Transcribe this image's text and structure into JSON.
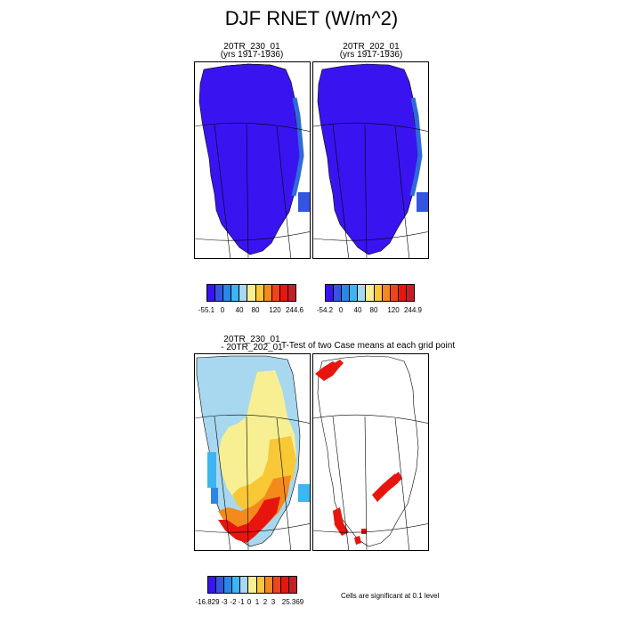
{
  "title": "DJF RNET (W/m^2)",
  "panels": [
    {
      "line1": "20TR_230_01",
      "line2": "(yrs 1917-1936)"
    },
    {
      "line1": "20TR_202_01",
      "line2": "(yrs 1917-1936)"
    },
    {
      "line1": "20TR_230_01",
      "line2": "- 20TR_202_01"
    },
    {
      "line1": "T-Test of two Case means at each grid point",
      "line2": ""
    }
  ],
  "colorbars": [
    {
      "labels": [
        "-55.1",
        "0",
        "40",
        "80",
        "120",
        "244.6"
      ]
    },
    {
      "labels": [
        "-54.2",
        "0",
        "40",
        "80",
        "120",
        "244.9"
      ]
    },
    {
      "labels": [
        "-16.829",
        "-3",
        "-2",
        "-1",
        "0",
        "1",
        "2",
        "3",
        "25.369"
      ]
    }
  ],
  "colors": {
    "mean_fill": "#3a14f0",
    "mean_edge": "#2f6bd8",
    "sig_fill": "#e8150f",
    "palette_mean": [
      "#3a14f0",
      "#3455e0",
      "#2b86e8",
      "#3cb5f0",
      "#a8d8ef",
      "#f8ef93",
      "#f9c837",
      "#f48a1c",
      "#f0451a",
      "#e8150f",
      "#c51f26"
    ],
    "palette_diff": [
      "#3a14f0",
      "#3455e0",
      "#2b86e8",
      "#3cb5f0",
      "#a8d8ef",
      "#f8ef93",
      "#f9c837",
      "#f48a1c",
      "#f0451a",
      "#e8150f",
      "#c51f26"
    ]
  },
  "note": "Cells are significant at 0.1 level"
}
